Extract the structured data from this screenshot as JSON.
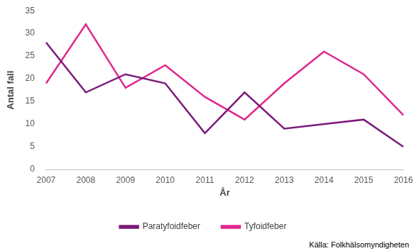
{
  "chart_data": {
    "type": "line",
    "x_label": "År",
    "y_label": "Antal fall",
    "categories": [
      "2007",
      "2008",
      "2009",
      "2010",
      "2011",
      "2012",
      "2013",
      "2014",
      "2015",
      "2016"
    ],
    "series": [
      {
        "name": "Paratyfoidfeber",
        "color": "#7b1a7b",
        "values": [
          28,
          17,
          21,
          19,
          8,
          17,
          9,
          10,
          11,
          5
        ]
      },
      {
        "name": "Tyfoidfeber",
        "color": "#e0278f",
        "values": [
          19,
          32,
          18,
          23,
          16,
          11,
          19,
          26,
          21,
          12
        ]
      }
    ],
    "ylim": [
      0,
      35
    ],
    "yticks": [
      0,
      5,
      10,
      15,
      20,
      25,
      30,
      35
    ],
    "grid": false,
    "legend": "bottom",
    "annotations": [
      "Källa: Folkhälsomyndigheten"
    ]
  }
}
